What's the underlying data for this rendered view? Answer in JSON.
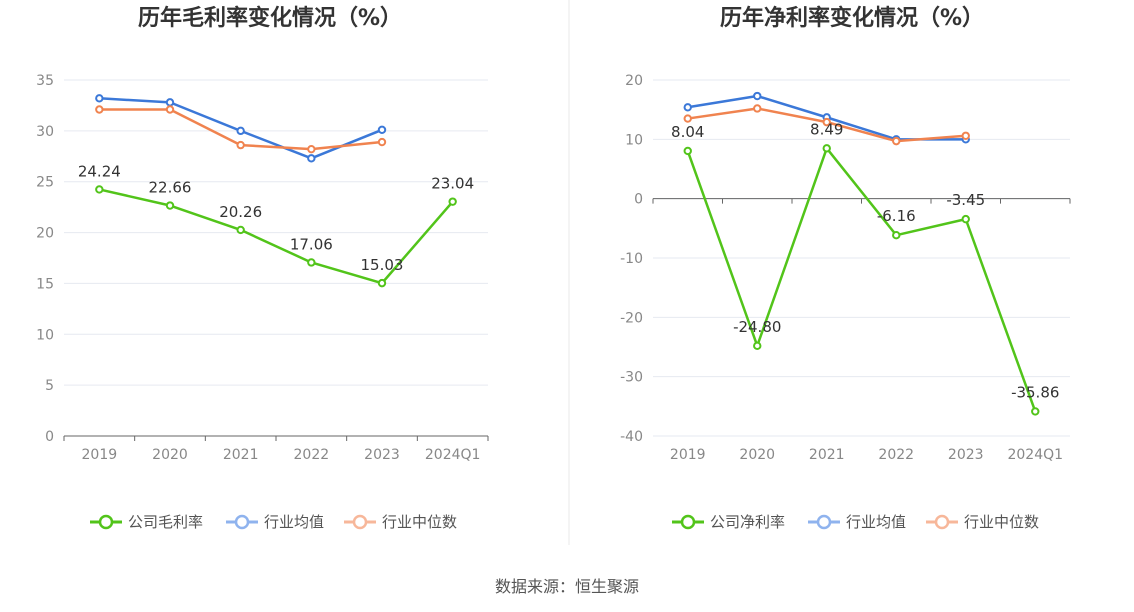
{
  "footer": {
    "source": "数据来源：恒生聚源"
  },
  "chart_data": [
    {
      "type": "line",
      "title": "历年毛利率变化情况（%）",
      "categories": [
        "2019",
        "2020",
        "2021",
        "2022",
        "2023",
        "2024Q1"
      ],
      "ylim": [
        0,
        35
      ],
      "yticks": [
        0,
        5,
        10,
        15,
        20,
        25,
        30,
        35
      ],
      "grid": true,
      "legend": "bottom",
      "series": [
        {
          "name": "公司毛利率",
          "color": "#52c41a",
          "values": [
            24.24,
            22.66,
            20.26,
            17.06,
            15.03,
            23.04
          ],
          "labels": [
            "24.24",
            "22.66",
            "20.26",
            "17.06",
            "15.03",
            "23.04"
          ]
        },
        {
          "name": "行业均值",
          "color": "#3b78d8",
          "values": [
            33.2,
            32.8,
            30.0,
            27.3,
            30.1,
            null
          ]
        },
        {
          "name": "行业中位数",
          "color": "#f0834f",
          "values": [
            32.1,
            32.1,
            28.6,
            28.2,
            28.9,
            null
          ]
        }
      ]
    },
    {
      "type": "line",
      "title": "历年净利率变化情况（%）",
      "categories": [
        "2019",
        "2020",
        "2021",
        "2022",
        "2023",
        "2024Q1"
      ],
      "ylim": [
        -40,
        20
      ],
      "yticks": [
        -40,
        -30,
        -20,
        -10,
        0,
        10,
        20
      ],
      "grid": true,
      "legend": "bottom",
      "series": [
        {
          "name": "公司净利率",
          "color": "#52c41a",
          "values": [
            8.04,
            -24.8,
            8.49,
            -6.16,
            -3.45,
            -35.86
          ],
          "labels": [
            "8.04",
            "-24.80",
            "8.49",
            "-6.16",
            "-3.45",
            "-35.86"
          ]
        },
        {
          "name": "行业均值",
          "color": "#3b78d8",
          "values": [
            15.4,
            17.3,
            13.7,
            10.0,
            10.0,
            null
          ]
        },
        {
          "name": "行业中位数",
          "color": "#f0834f",
          "values": [
            13.5,
            15.2,
            12.9,
            9.7,
            10.6,
            null
          ]
        }
      ]
    }
  ]
}
